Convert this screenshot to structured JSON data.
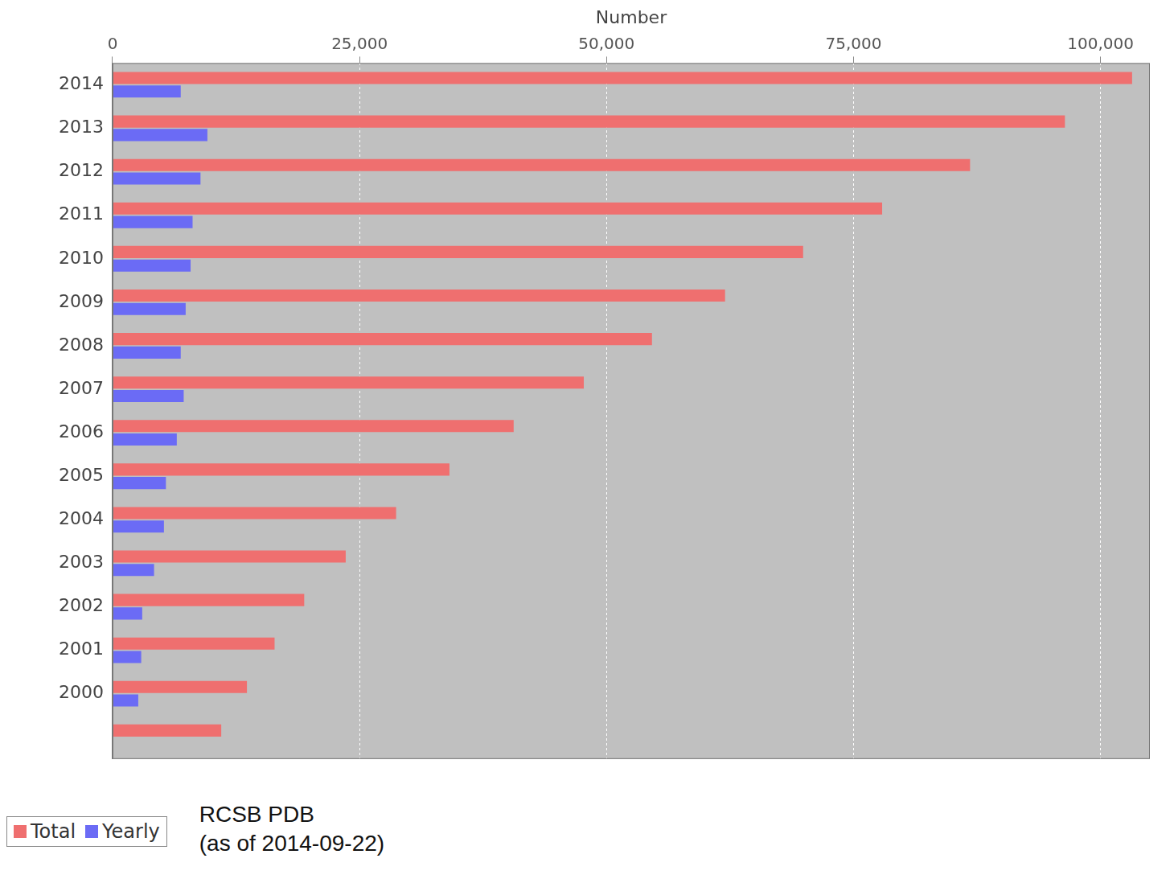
{
  "chart_data": {
    "type": "bar",
    "orientation": "horizontal",
    "x_label": "Number",
    "categories": [
      "2014",
      "2013",
      "2012",
      "2011",
      "2010",
      "2009",
      "2008",
      "2007",
      "2006",
      "2005",
      "2004",
      "2003",
      "2002",
      "2001",
      "2000",
      null
    ],
    "series": [
      {
        "name": "Total",
        "color": "#ef6f6f",
        "values": [
          103200,
          96400,
          86800,
          77900,
          69900,
          62000,
          54600,
          47700,
          40600,
          34100,
          28700,
          23600,
          19400,
          16400,
          13600,
          11000
        ]
      },
      {
        "name": "Yearly",
        "color": "#6b6bf5",
        "values": [
          6900,
          9600,
          8900,
          8100,
          7900,
          7400,
          6900,
          7200,
          6500,
          5400,
          5200,
          4200,
          3000,
          2900,
          2600,
          null
        ]
      }
    ],
    "xlim": [
      0,
      105000
    ],
    "xticks": [
      0,
      {
        "value": 25000,
        "label": "25,000"
      },
      {
        "value": 50000,
        "label": "50,000"
      },
      {
        "value": 75000,
        "label": "75,000"
      },
      {
        "value": 100000,
        "label": "100,000"
      }
    ],
    "grid": true,
    "legend": "bottom-left",
    "annotations": [
      "RCSB PDB",
      "(as of 2014-09-22)"
    ]
  }
}
